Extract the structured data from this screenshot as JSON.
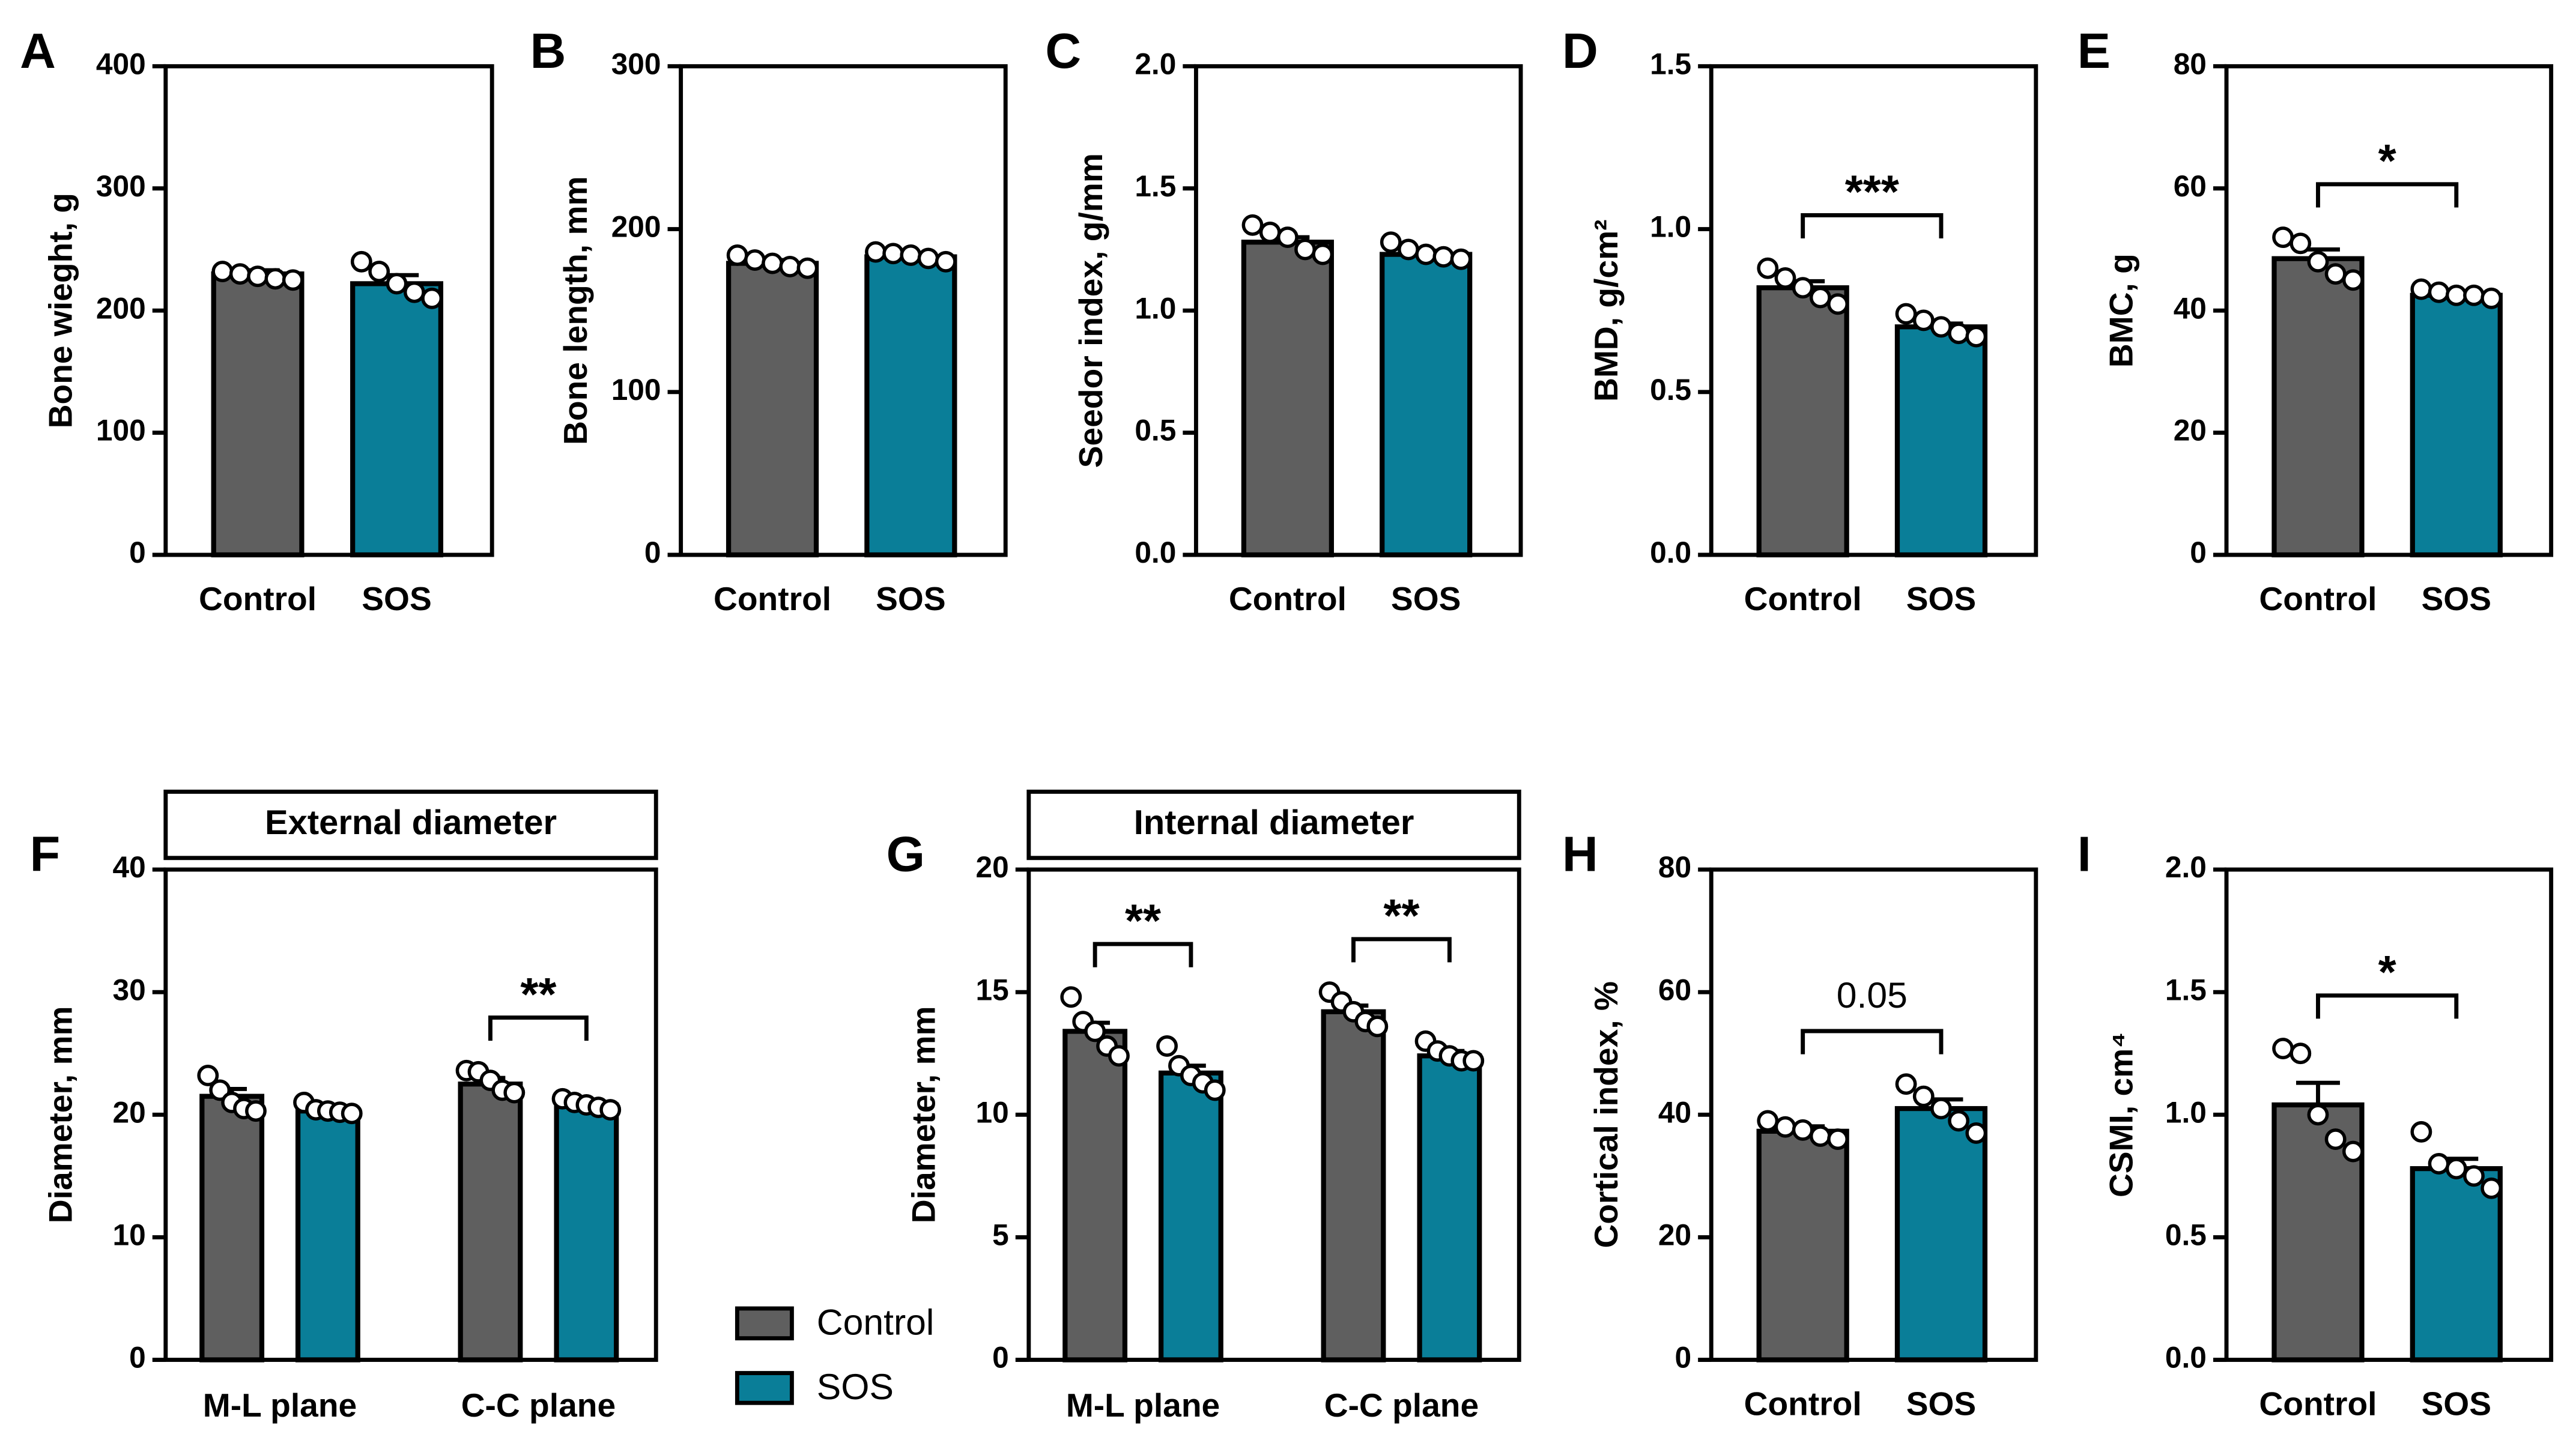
{
  "chart_data": [
    {
      "type": "bar",
      "label": "A",
      "ylabel": "Bone wieght, g",
      "categories": [
        "Control",
        "SOS"
      ],
      "colors": [
        "#5f5f5f",
        "#0a7e98"
      ],
      "values": [
        230,
        222
      ],
      "errors": [
        3,
        7
      ],
      "points": [
        [
          232,
          230,
          228,
          226,
          225
        ],
        [
          240,
          232,
          222,
          215,
          210
        ]
      ],
      "ylim": [
        0,
        400
      ],
      "yticks": [
        0,
        100,
        200,
        300,
        400
      ]
    },
    {
      "type": "bar",
      "label": "B",
      "ylabel": "Bone length, mm",
      "categories": [
        "Control",
        "SOS"
      ],
      "colors": [
        "#5f5f5f",
        "#0a7e98"
      ],
      "values": [
        179,
        183
      ],
      "errors": [
        2,
        2
      ],
      "points": [
        [
          184,
          181,
          179,
          177,
          176
        ],
        [
          186,
          185,
          184,
          182,
          180
        ]
      ],
      "ylim": [
        0,
        300
      ],
      "yticks": [
        0,
        100,
        200,
        300
      ]
    },
    {
      "type": "bar",
      "label": "C",
      "ylabel": "Seedor index, g/mm",
      "categories": [
        "Control",
        "SOS"
      ],
      "colors": [
        "#5f5f5f",
        "#0a7e98"
      ],
      "values": [
        1.28,
        1.23
      ],
      "errors": [
        0.02,
        0.015
      ],
      "points": [
        [
          1.35,
          1.32,
          1.3,
          1.25,
          1.23
        ],
        [
          1.28,
          1.25,
          1.23,
          1.22,
          1.21
        ]
      ],
      "ylim": [
        0,
        2
      ],
      "yticks": [
        {
          "value": 0,
          "label": "0.0"
        },
        0.5,
        {
          "value": 1,
          "label": "1.0"
        },
        1.5,
        {
          "value": 2,
          "label": "2.0"
        }
      ]
    },
    {
      "type": "bar",
      "label": "D",
      "ylabel": "BMD, g/cm²",
      "categories": [
        "Control",
        "SOS"
      ],
      "colors": [
        "#5f5f5f",
        "#0a7e98"
      ],
      "values": [
        0.82,
        0.7
      ],
      "errors": [
        0.02,
        0.01
      ],
      "points": [
        [
          0.88,
          0.85,
          0.82,
          0.79,
          0.77
        ],
        [
          0.74,
          0.72,
          0.7,
          0.68,
          0.67
        ]
      ],
      "annotation": "***",
      "ylim": [
        0,
        1.5
      ],
      "yticks": [
        {
          "value": 0,
          "label": "0.0"
        },
        0.5,
        {
          "value": 1,
          "label": "1.0"
        },
        1.5
      ]
    },
    {
      "type": "bar",
      "label": "E",
      "ylabel": "BMC, g",
      "categories": [
        "Control",
        "SOS"
      ],
      "colors": [
        "#5f5f5f",
        "#0a7e98"
      ],
      "values": [
        48.5,
        42.5
      ],
      "errors": [
        1.5,
        0.3
      ],
      "points": [
        [
          52,
          51,
          48,
          46,
          45
        ],
        [
          43.5,
          43,
          42.5,
          42.5,
          42
        ]
      ],
      "annotation": "*",
      "ylim": [
        0,
        80
      ],
      "yticks": [
        0,
        20,
        40,
        60,
        80
      ]
    },
    {
      "type": "bar",
      "label": "F",
      "title": "External diameter",
      "ylabel": "Diameter, mm",
      "categories": [
        "M-L plane",
        "C-C plane"
      ],
      "series": [
        {
          "name": "Control",
          "color": "#5f5f5f",
          "values": [
            21.5,
            22.5
          ],
          "errors": [
            0.6,
            0.5
          ],
          "points": [
            [
              23.2,
              22,
              21,
              20.5,
              20.3
            ],
            [
              23.6,
              23.5,
              22.8,
              22,
              21.8
            ]
          ]
        },
        {
          "name": "SOS",
          "color": "#0a7e98",
          "values": [
            20.3,
            20.8
          ],
          "errors": [
            0.2,
            0.2
          ],
          "points": [
            [
              21,
              20.4,
              20.3,
              20.2,
              20.1
            ],
            [
              21.3,
              21,
              20.8,
              20.6,
              20.4
            ]
          ]
        }
      ],
      "annotations": [
        null,
        "**"
      ],
      "ylim": [
        0,
        40
      ],
      "yticks": [
        0,
        10,
        20,
        30,
        40
      ]
    },
    {
      "type": "bar",
      "label": "G",
      "title": "Internal diameter",
      "ylabel": "Diameter, mm",
      "categories": [
        "M-L plane",
        "C-C plane"
      ],
      "series": [
        {
          "name": "Control",
          "color": "#5f5f5f",
          "values": [
            13.4,
            14.2
          ],
          "errors": [
            0.35,
            0.25
          ],
          "points": [
            [
              14.8,
              13.8,
              13.4,
              12.8,
              12.4
            ],
            [
              15,
              14.6,
              14.2,
              13.8,
              13.6
            ]
          ]
        },
        {
          "name": "SOS",
          "color": "#0a7e98",
          "values": [
            11.7,
            12.4
          ],
          "errors": [
            0.3,
            0.2
          ],
          "points": [
            [
              12.8,
              12,
              11.6,
              11.3,
              11
            ],
            [
              13,
              12.6,
              12.4,
              12.2,
              12.2
            ]
          ]
        }
      ],
      "annotations": [
        "**",
        "**"
      ],
      "ylim": [
        0,
        20
      ],
      "yticks": [
        0,
        5,
        10,
        15,
        20
      ]
    },
    {
      "type": "bar",
      "label": "H",
      "ylabel": "Cortical index, %",
      "categories": [
        "Control",
        "SOS"
      ],
      "colors": [
        "#5f5f5f",
        "#0a7e98"
      ],
      "values": [
        37.3,
        41
      ],
      "errors": [
        0.8,
        1.5
      ],
      "points": [
        [
          39,
          38,
          37.5,
          36.5,
          36
        ],
        [
          45,
          43,
          41,
          39,
          37
        ]
      ],
      "annotation": "0.05",
      "ylim": [
        0,
        80
      ],
      "yticks": [
        0,
        20,
        40,
        60,
        80
      ]
    },
    {
      "type": "bar",
      "label": "I",
      "ylabel": "CSMI, cm⁴",
      "categories": [
        "Control",
        "SOS"
      ],
      "colors": [
        "#5f5f5f",
        "#0a7e98"
      ],
      "values": [
        1.04,
        0.78
      ],
      "errors": [
        0.09,
        0.04
      ],
      "points": [
        [
          1.27,
          1.25,
          1.0,
          0.9,
          0.85
        ],
        [
          0.93,
          0.8,
          0.78,
          0.75,
          0.7
        ]
      ],
      "annotation": "*",
      "ylim": [
        0,
        2
      ],
      "yticks": [
        {
          "value": 0,
          "label": "0.0"
        },
        0.5,
        {
          "value": 1,
          "label": "1.0"
        },
        1.5,
        {
          "value": 2,
          "label": "2.0"
        }
      ]
    }
  ]
}
